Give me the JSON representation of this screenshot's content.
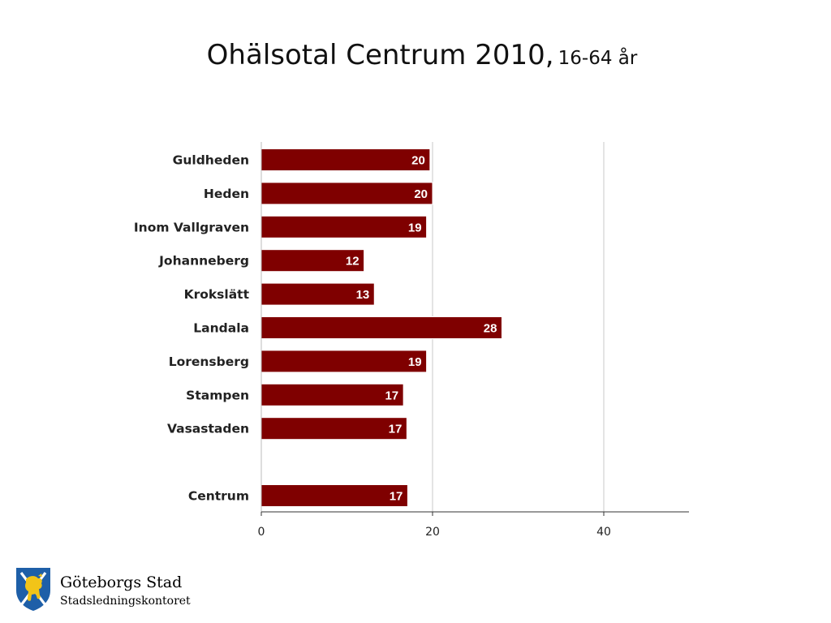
{
  "title": {
    "main": "Ohälsotal Centrum 2010,",
    "sub": "16-64 år"
  },
  "chart_data": {
    "type": "bar",
    "orientation": "horizontal",
    "categories": [
      "Guldheden",
      "Heden",
      "Inom Vallgraven",
      "Johanneberg",
      "Krokslätt",
      "Landala",
      "Lorensberg",
      "Stampen",
      "Vasastaden",
      "",
      "Centrum"
    ],
    "values": [
      20,
      20,
      19,
      12,
      13,
      28,
      19,
      17,
      17,
      null,
      17
    ],
    "bar_values": [
      19.7,
      20,
      19.3,
      12,
      13.2,
      28.1,
      19.3,
      16.6,
      17,
      null,
      17.1
    ],
    "data_labels": [
      "20",
      "20",
      "19",
      "12",
      "13",
      "28",
      "19",
      "17",
      "17",
      "",
      "17"
    ],
    "xlim": [
      0,
      50
    ],
    "xticks": [
      0,
      20,
      40
    ],
    "xgrid": true,
    "bar_color": "#7f0000",
    "title": "Ohälsotal Centrum 2010, 16-64 år",
    "xlabel": "",
    "ylabel": ""
  },
  "logo": {
    "name": "Göteborgs Stad",
    "department": "Stadsledningskontoret",
    "shield_color": "#1e5fa8",
    "lion_color": "#f2c418"
  }
}
